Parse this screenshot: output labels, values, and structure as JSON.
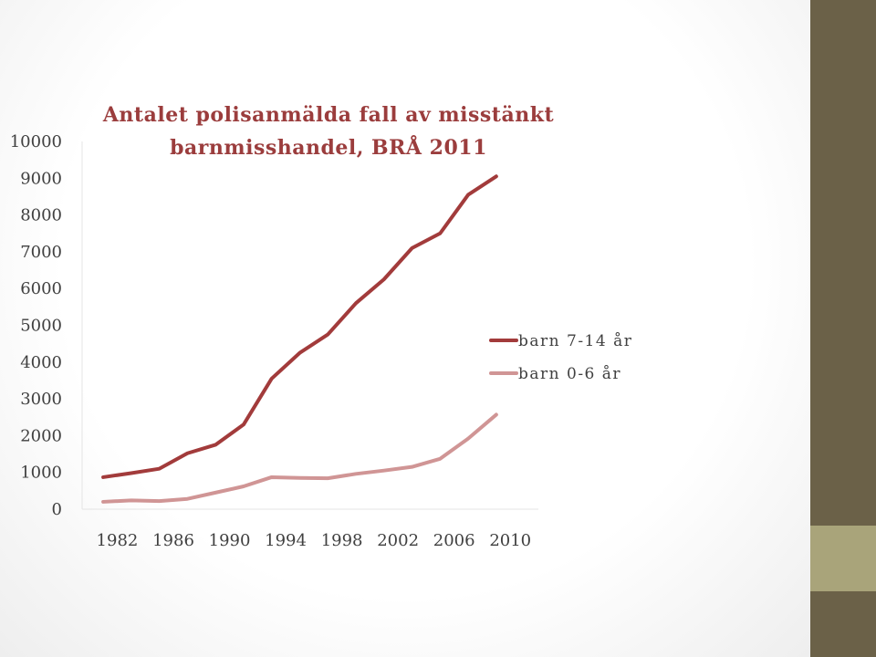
{
  "chart_data": {
    "type": "line",
    "title_lines": [
      "Antalet polisanmälda fall av misstänkt",
      "barnmisshandel, BRÅ 2011"
    ],
    "x": [
      1981,
      1983,
      1985,
      1987,
      1989,
      1991,
      1993,
      1995,
      1997,
      1999,
      2001,
      2003,
      2005,
      2007,
      2009,
      2011
    ],
    "x_tick_labels": [
      "1982",
      "1986",
      "1990",
      "1994",
      "1998",
      "2002",
      "2006",
      "2010"
    ],
    "x_tick_positions": [
      1982,
      1986,
      1990,
      1994,
      1998,
      2002,
      2006,
      2010
    ],
    "ylim": [
      0,
      10000
    ],
    "y_ticks": [
      "0",
      "1000",
      "2000",
      "3000",
      "4000",
      "5000",
      "6000",
      "7000",
      "8000",
      "9000",
      "10000"
    ],
    "legend_position": "right",
    "series": [
      {
        "name": "barn 7-14 år",
        "color": "#a23b3b",
        "values": [
          870,
          980,
          1100,
          1520,
          1750,
          2300,
          3550,
          4250,
          4750,
          5600,
          6250,
          7100,
          7500,
          8550,
          9050,
          null
        ]
      },
      {
        "name": "barn 0-6 år",
        "color": "#d09595",
        "values": [
          200,
          240,
          220,
          280,
          450,
          620,
          870,
          850,
          840,
          960,
          1050,
          1150,
          1370,
          1920,
          2570,
          null
        ]
      }
    ]
  }
}
